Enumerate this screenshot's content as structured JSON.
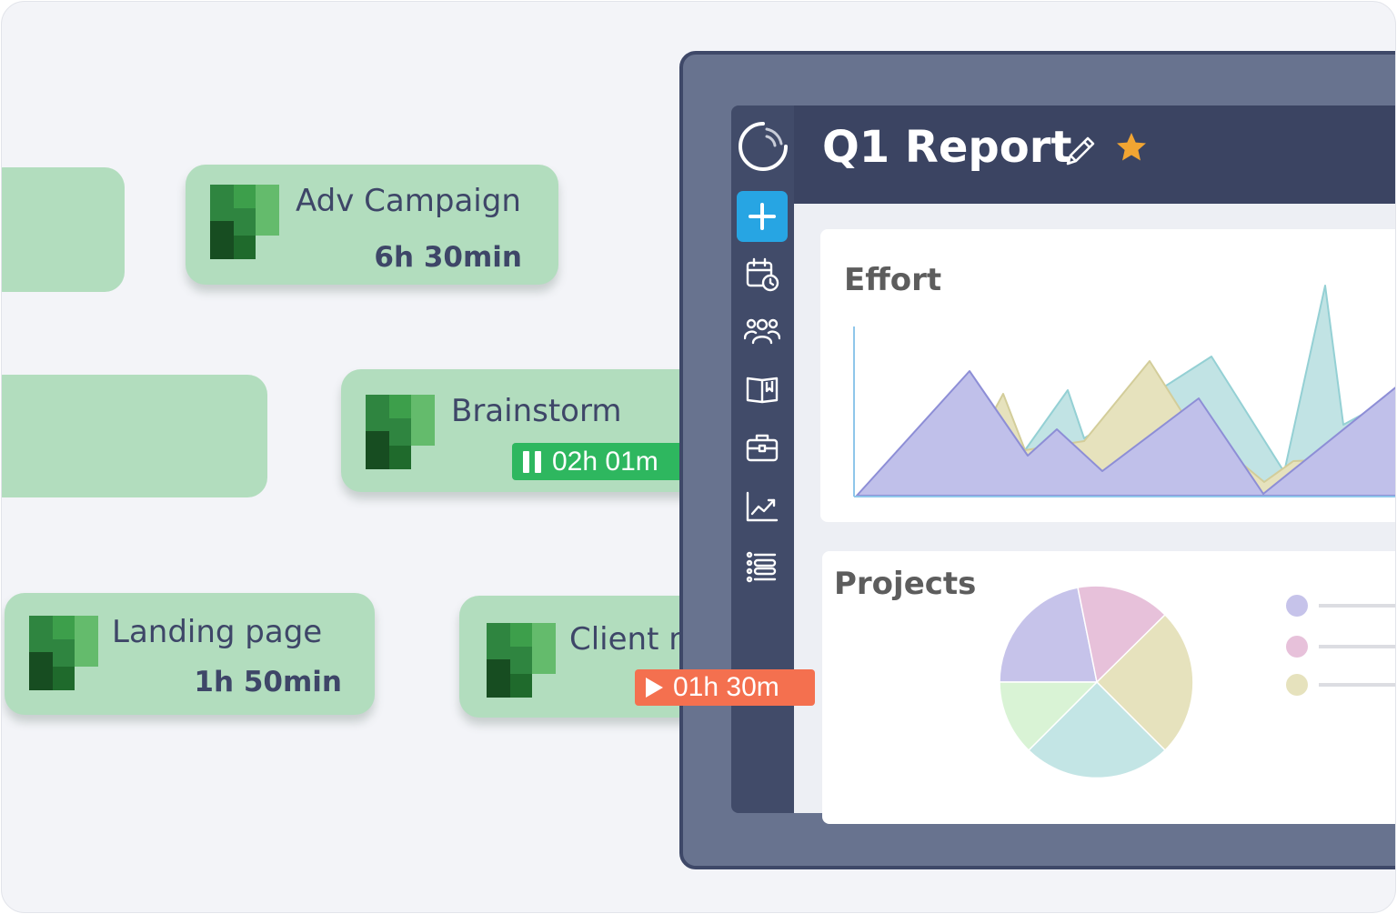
{
  "tasks": [
    {
      "title": "Adv Campaign",
      "time": "6h 30min"
    },
    {
      "title": "Brainstorm",
      "timer": "02h 01m",
      "timer_state": "running"
    },
    {
      "title": "Landing page",
      "time": "1h 50min"
    },
    {
      "title": "Client meeting",
      "timer": "01h 30m",
      "timer_state": "paused"
    }
  ],
  "app": {
    "title": "Q1 Report",
    "starred": true,
    "nav_icons": [
      "add-icon",
      "calendar-clock-icon",
      "team-icon",
      "book-icon",
      "briefcase-icon",
      "chart-line-icon",
      "list-icon"
    ]
  },
  "effort_panel": {
    "title": "Effort"
  },
  "projects_panel": {
    "title": "Projects"
  },
  "colors": {
    "card": "#b2ddbe",
    "timer_running": "#2eb75f",
    "timer_stopped": "#f4704f",
    "add_button": "#27a5e3",
    "star": "#f2a532",
    "series": [
      "#c0c0ea",
      "#e6e2bd",
      "#c1e3e4"
    ],
    "pie": [
      "#c6c3ea",
      "#e7c1da",
      "#e6e2bd",
      "#c3e5e5",
      "#d9f3d5"
    ]
  }
}
